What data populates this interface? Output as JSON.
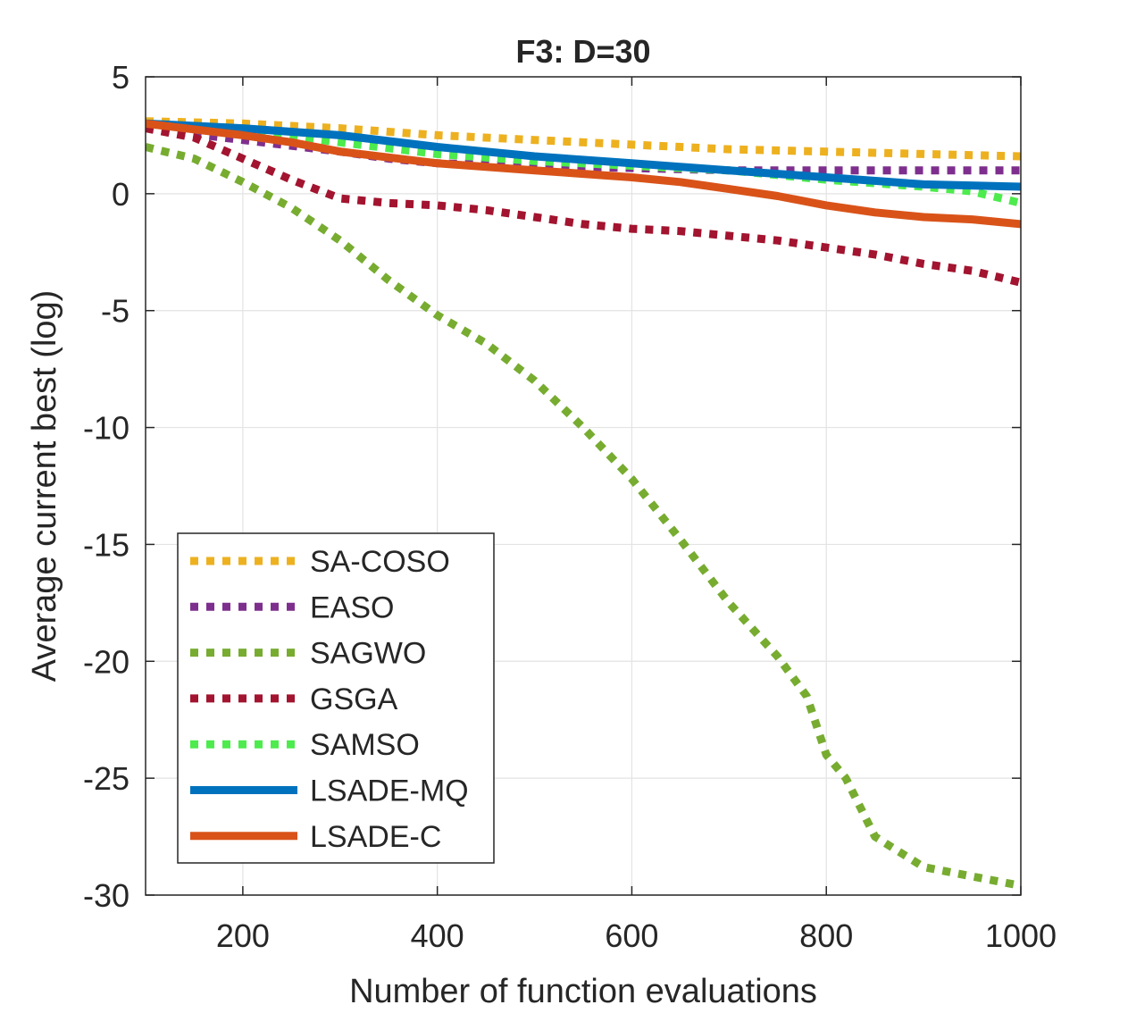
{
  "chart_data": {
    "type": "line",
    "title": "F3: D=30",
    "xlabel": "Number of function evaluations",
    "ylabel": "Average current best (log)",
    "xlim": [
      100,
      1000
    ],
    "ylim": [
      -30,
      5
    ],
    "xticks": [
      200,
      400,
      600,
      800,
      1000
    ],
    "xtick_labels": [
      "200",
      "400",
      "600",
      "800",
      "1000"
    ],
    "yticks": [
      5,
      0,
      -5,
      -10,
      -15,
      -20,
      -25,
      -30
    ],
    "ytick_labels": [
      "5",
      "0",
      "-5",
      "-10",
      "-15",
      "-20",
      "-25",
      "-30"
    ],
    "grid": true,
    "legend_position": "bottom-left",
    "series": [
      {
        "name": "SA-COSO",
        "color": "#EDB120",
        "style": "dotted",
        "x": [
          100,
          200,
          300,
          400,
          500,
          600,
          700,
          800,
          900,
          1000
        ],
        "y": [
          3.1,
          3.0,
          2.8,
          2.5,
          2.3,
          2.1,
          1.9,
          1.8,
          1.7,
          1.6
        ]
      },
      {
        "name": "EASO",
        "color": "#7E2F8E",
        "style": "dotted",
        "x": [
          100,
          200,
          300,
          350,
          400,
          500,
          600,
          700,
          800,
          900,
          1000
        ],
        "y": [
          2.8,
          2.3,
          1.8,
          1.5,
          1.3,
          1.2,
          1.1,
          1.0,
          1.0,
          1.0,
          1.0
        ]
      },
      {
        "name": "SAGWO",
        "color": "#77AC30",
        "style": "dotted",
        "x": [
          100,
          150,
          200,
          250,
          300,
          350,
          400,
          450,
          500,
          550,
          600,
          650,
          700,
          750,
          780,
          800,
          820,
          850,
          900,
          950,
          1000
        ],
        "y": [
          2.0,
          1.5,
          0.5,
          -0.6,
          -2.0,
          -3.7,
          -5.2,
          -6.4,
          -8.0,
          -10.0,
          -12.2,
          -14.8,
          -17.5,
          -19.8,
          -21.5,
          -24.0,
          -25.0,
          -27.5,
          -28.8,
          -29.2,
          -29.6
        ]
      },
      {
        "name": "GSGA",
        "color": "#A2142F",
        "style": "dotted",
        "x": [
          100,
          150,
          200,
          250,
          300,
          350,
          400,
          450,
          500,
          550,
          600,
          650,
          700,
          750,
          800,
          850,
          900,
          950,
          1000
        ],
        "y": [
          2.8,
          2.4,
          1.5,
          0.6,
          -0.2,
          -0.4,
          -0.5,
          -0.7,
          -1.0,
          -1.3,
          -1.5,
          -1.6,
          -1.8,
          -2.0,
          -2.3,
          -2.6,
          -3.0,
          -3.3,
          -3.8
        ]
      },
      {
        "name": "SAMSO",
        "color": "#4DEB4D",
        "style": "dotted",
        "x": [
          100,
          200,
          300,
          400,
          500,
          600,
          700,
          800,
          900,
          950,
          1000
        ],
        "y": [
          3.0,
          2.7,
          2.2,
          1.7,
          1.4,
          1.2,
          1.0,
          0.6,
          0.3,
          0.1,
          -0.4
        ]
      },
      {
        "name": "LSADE-MQ",
        "color": "#0072BD",
        "style": "solid",
        "x": [
          100,
          200,
          300,
          400,
          500,
          600,
          700,
          800,
          900,
          1000
        ],
        "y": [
          3.0,
          2.8,
          2.5,
          2.0,
          1.6,
          1.3,
          1.0,
          0.7,
          0.4,
          0.3
        ]
      },
      {
        "name": "LSADE-C",
        "color": "#D95319",
        "style": "solid",
        "x": [
          100,
          200,
          250,
          300,
          400,
          500,
          600,
          650,
          700,
          750,
          800,
          850,
          900,
          950,
          1000
        ],
        "y": [
          3.0,
          2.5,
          2.2,
          1.8,
          1.3,
          1.0,
          0.7,
          0.5,
          0.2,
          -0.1,
          -0.5,
          -0.8,
          -1.0,
          -1.1,
          -1.3
        ]
      }
    ]
  }
}
